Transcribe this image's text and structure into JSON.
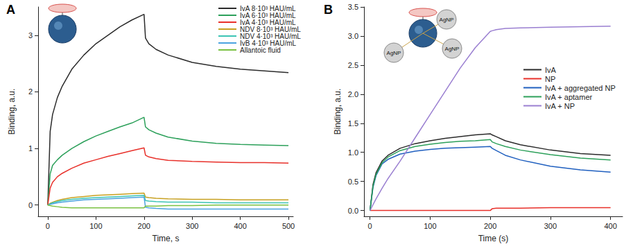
{
  "chart_data": [
    {
      "type": "line",
      "title": "A",
      "xlabel": "Time, s",
      "ylabel": "Binding, a.u.",
      "xlim": [
        -20,
        510
      ],
      "xticks": [
        0,
        100,
        200,
        300,
        400,
        500
      ],
      "ylim": [
        -0.2,
        3.5
      ],
      "yticks": [
        0,
        1,
        2,
        3
      ],
      "grid": false,
      "legend": "upper right",
      "marker": "none",
      "x": [
        0,
        5,
        10,
        20,
        30,
        50,
        75,
        100,
        125,
        150,
        175,
        200,
        203,
        210,
        225,
        250,
        300,
        350,
        400,
        450,
        500
      ],
      "series": [
        {
          "name": "IvA 8·10³ HAU/mL",
          "color": "#2b2b2b",
          "values": [
            0,
            1.3,
            1.6,
            1.9,
            2.1,
            2.4,
            2.65,
            2.85,
            3.0,
            3.15,
            3.27,
            3.37,
            2.95,
            2.85,
            2.75,
            2.65,
            2.52,
            2.45,
            2.4,
            2.37,
            2.34
          ]
        },
        {
          "name": "IvA 6·10³ HAU/mL",
          "color": "#2ca05a",
          "values": [
            0,
            0.55,
            0.7,
            0.8,
            0.88,
            1.0,
            1.12,
            1.22,
            1.3,
            1.38,
            1.45,
            1.55,
            1.38,
            1.33,
            1.27,
            1.2,
            1.13,
            1.09,
            1.07,
            1.06,
            1.05
          ]
        },
        {
          "name": "IvA 4·10³ HAU/mL",
          "color": "#e8302a",
          "values": [
            0,
            0.3,
            0.4,
            0.5,
            0.56,
            0.65,
            0.74,
            0.8,
            0.86,
            0.91,
            0.96,
            1.01,
            0.88,
            0.85,
            0.82,
            0.79,
            0.77,
            0.76,
            0.75,
            0.75,
            0.74
          ]
        },
        {
          "name": "NDV 8·10³ HAU/mL",
          "color": "#c8a020",
          "values": [
            0,
            0.03,
            0.05,
            0.08,
            0.1,
            0.13,
            0.15,
            0.17,
            0.18,
            0.19,
            0.2,
            0.21,
            0.14,
            0.13,
            0.12,
            0.11,
            0.1,
            0.1,
            0.09,
            0.09,
            0.09
          ]
        },
        {
          "name": "NDV 4·10³ HAU/mL",
          "color": "#3cc4b4",
          "values": [
            0,
            0.02,
            0.04,
            0.06,
            0.08,
            0.1,
            0.12,
            0.13,
            0.14,
            0.15,
            0.16,
            0.17,
            0.08,
            0.07,
            0.06,
            0.05,
            0.05,
            0.04,
            0.04,
            0.04,
            0.04
          ]
        },
        {
          "name": "IvB 4·10³ HAU/mL",
          "color": "#4aa3df",
          "values": [
            0,
            0.01,
            0.02,
            0.04,
            0.05,
            0.07,
            0.09,
            0.1,
            0.11,
            0.12,
            0.13,
            0.14,
            -0.04,
            -0.05,
            -0.06,
            -0.07,
            -0.07,
            -0.07,
            -0.07,
            -0.07,
            -0.07
          ]
        },
        {
          "name": "Allantoic fluid",
          "color": "#7ac142",
          "values": [
            0,
            -0.01,
            -0.02,
            -0.03,
            -0.04,
            -0.05,
            -0.05,
            -0.05,
            -0.05,
            -0.05,
            -0.05,
            -0.05,
            -0.02,
            -0.02,
            -0.02,
            -0.01,
            -0.01,
            0,
            0,
            0,
            0
          ]
        }
      ]
    },
    {
      "type": "line",
      "title": "B",
      "xlabel": "Time (s)",
      "ylabel": "Binding, a.u.",
      "xlim": [
        -10,
        420
      ],
      "xticks": [
        0,
        100,
        200,
        300,
        400
      ],
      "ylim": [
        -0.1,
        3.5
      ],
      "yticks": [
        {
          "value": 0,
          "label": "0.0"
        },
        0.5,
        {
          "value": 1,
          "label": "1.0"
        },
        1.5,
        {
          "value": 2,
          "label": "2.0"
        },
        2.5,
        {
          "value": 3,
          "label": "3.0"
        },
        3.5
      ],
      "grid": false,
      "legend": "right",
      "marker": "none",
      "annotations": [
        "AgNP",
        "AgNP",
        "AgNP"
      ],
      "x": [
        0,
        5,
        10,
        20,
        30,
        50,
        75,
        100,
        125,
        150,
        175,
        200,
        203,
        210,
        225,
        250,
        300,
        350,
        400
      ],
      "series": [
        {
          "name": "IvA",
          "color": "#2b2b2b",
          "values": [
            0,
            0.45,
            0.65,
            0.85,
            0.95,
            1.07,
            1.15,
            1.2,
            1.24,
            1.27,
            1.3,
            1.32,
            1.3,
            1.27,
            1.2,
            1.13,
            1.04,
            0.98,
            0.95
          ]
        },
        {
          "name": "NP",
          "color": "#e8302a",
          "values": [
            0,
            0,
            0,
            0,
            0,
            0,
            0,
            0,
            0,
            0,
            0,
            0,
            0.03,
            0.04,
            0.04,
            0.04,
            0.05,
            0.05,
            0.05
          ]
        },
        {
          "name": "IvA + aggregated NP",
          "color": "#1f5fbf",
          "values": [
            0,
            0.4,
            0.6,
            0.8,
            0.88,
            0.97,
            1.02,
            1.05,
            1.07,
            1.08,
            1.09,
            1.1,
            1.07,
            1.03,
            0.95,
            0.87,
            0.76,
            0.7,
            0.66
          ]
        },
        {
          "name": "IvA + aptamer",
          "color": "#2ca05a",
          "values": [
            0,
            0.42,
            0.62,
            0.82,
            0.92,
            1.03,
            1.1,
            1.14,
            1.17,
            1.19,
            1.2,
            1.22,
            1.18,
            1.15,
            1.1,
            1.04,
            0.96,
            0.9,
            0.87
          ]
        },
        {
          "name": "IvA + NP",
          "color": "#9a7fd1",
          "values": [
            0,
            0.1,
            0.2,
            0.38,
            0.55,
            0.85,
            1.25,
            1.65,
            2.05,
            2.45,
            2.8,
            3.08,
            3.09,
            3.11,
            3.13,
            3.14,
            3.15,
            3.16,
            3.17
          ]
        }
      ]
    }
  ]
}
